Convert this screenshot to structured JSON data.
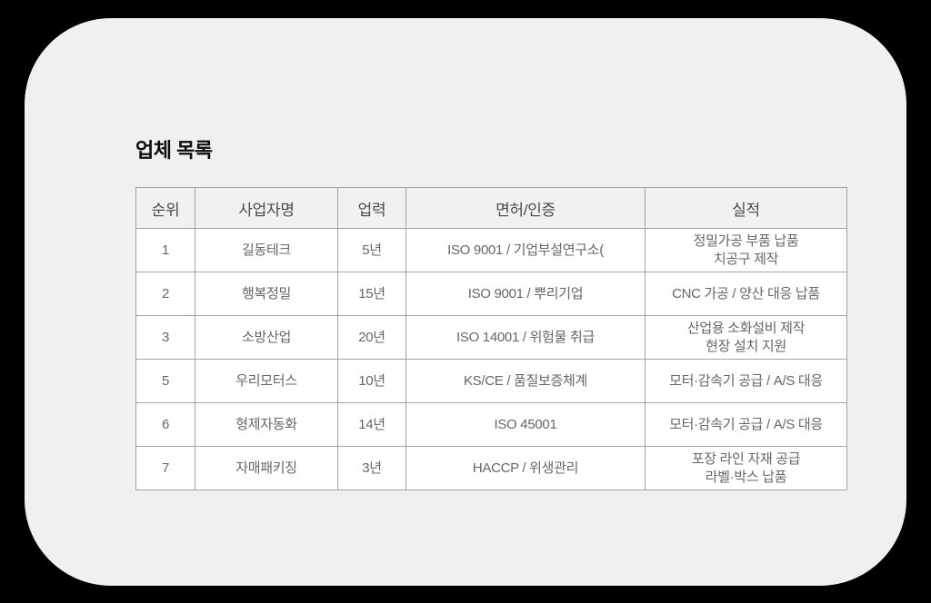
{
  "page": {
    "title": "업체 목록"
  },
  "table": {
    "headers": {
      "rank": "순위",
      "name": "사업자명",
      "years": "업력",
      "license": "면허/인증",
      "performance": "실적"
    },
    "rows": [
      {
        "rank": "1",
        "name": "길동테크",
        "years": "5년",
        "license": "ISO 9001 / 기업부설연구소(",
        "performance": "정밀가공 부품 납품\n치공구 제작"
      },
      {
        "rank": "2",
        "name": "행복정밀",
        "years": "15년",
        "license": "ISO 9001 / 뿌리기업",
        "performance": "CNC 가공 / 양산 대응 납품"
      },
      {
        "rank": "3",
        "name": "소방산업",
        "years": "20년",
        "license": "ISO 14001 / 위험물 취급",
        "performance": "산업용 소화설비 제작\n현장 설치 지원"
      },
      {
        "rank": "5",
        "name": "우리모터스",
        "years": "10년",
        "license": "KS/CE / 품질보증체계",
        "performance": "모터·감속기 공급 / A/S 대응"
      },
      {
        "rank": "6",
        "name": "형제자동화",
        "years": "14년",
        "license": "ISO 45001",
        "performance": "모터·감속기 공급 / A/S 대응"
      },
      {
        "rank": "7",
        "name": "자매패키징",
        "years": "3년",
        "license": "HACCP / 위생관리",
        "performance": "포장 라인 자재 공급\n라벨·박스 납품"
      }
    ]
  },
  "colors": {
    "background": "#000000",
    "card": "#f0f0ee",
    "cell": "#ffffff",
    "header_cell": "#f1f1f0",
    "border": "#a3a3a3",
    "text": "#666666",
    "title": "#0d0d0d"
  }
}
